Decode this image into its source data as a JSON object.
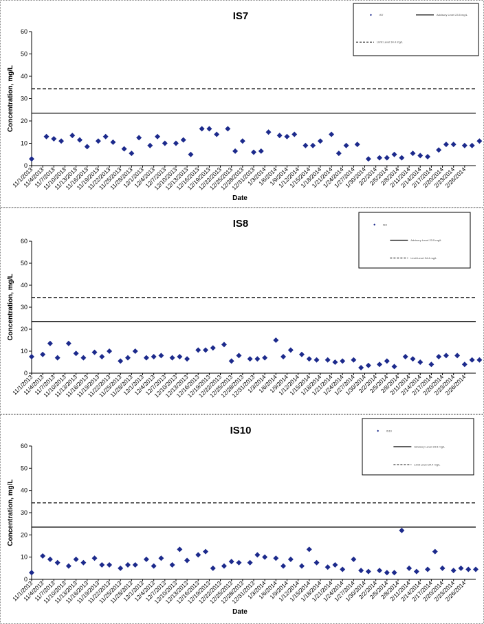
{
  "chart_data": [
    {
      "type": "scatter",
      "title": "IS7",
      "xlabel": "Date",
      "ylabel": "Concentration, mg/L",
      "ylim": [
        0,
        60
      ],
      "yticks": [
        0,
        10,
        20,
        30,
        40,
        50,
        60
      ],
      "xlim": [
        "11/1/2013",
        "3/1/2014"
      ],
      "xticks": [
        "11/1/2013",
        "11/4/2013",
        "11/7/2013",
        "11/10/2013",
        "11/13/2013",
        "11/16/2013",
        "11/19/2013",
        "11/22/2013",
        "11/25/2013",
        "11/28/2013",
        "12/1/2013",
        "12/4/2013",
        "12/7/2013",
        "12/10/2013",
        "12/13/2013",
        "12/16/2013",
        "12/19/2013",
        "12/22/2013",
        "12/25/2013",
        "12/28/2013",
        "12/31/2013",
        "1/3/2014",
        "1/6/2014",
        "1/9/2014",
        "1/12/2014",
        "1/15/2014",
        "1/18/2014",
        "1/21/2014",
        "1/24/2014",
        "1/27/2014",
        "1/30/2014",
        "2/2/2014",
        "2/5/2014",
        "2/8/2014",
        "2/11/2014",
        "2/14/2014",
        "2/17/2014",
        "2/20/2014",
        "2/23/2014",
        "2/26/2014"
      ],
      "legend_placement": "top-right",
      "legend_entries": [
        "IS7",
        "Advisory Level 23.5 mg/L",
        "Limit Level 34.4 mg/L"
      ],
      "reference_lines": [
        {
          "name": "Advisory Level 23.5 mg/L",
          "y": 23.5,
          "style": "solid",
          "color": "#000000"
        },
        {
          "name": "Limit Level 34.4 mg/L",
          "y": 34.4,
          "style": "dashed",
          "color": "#000000"
        }
      ],
      "series": [
        {
          "name": "IS7",
          "color": "#1c2a8c",
          "marker": "diamond",
          "x": [
            "11/1/2013",
            "11/5/2013",
            "11/7/2013",
            "11/9/2013",
            "11/12/2013",
            "11/14/2013",
            "11/16/2013",
            "11/19/2013",
            "11/21/2013",
            "11/23/2013",
            "11/26/2013",
            "11/28/2013",
            "11/30/2013",
            "12/3/2013",
            "12/5/2013",
            "12/7/2013",
            "12/10/2013",
            "12/12/2013",
            "12/14/2013",
            "12/17/2013",
            "12/19/2013",
            "12/21/2013",
            "12/24/2013",
            "12/26/2013",
            "12/28/2013",
            "12/31/2013",
            "1/2/2014",
            "1/4/2014",
            "1/7/2014",
            "1/9/2014",
            "1/11/2014",
            "1/14/2014",
            "1/16/2014",
            "1/18/2014",
            "1/21/2014",
            "1/23/2014",
            "1/25/2014",
            "1/28/2014",
            "1/31/2014",
            "2/3/2014",
            "2/5/2014",
            "2/7/2014",
            "2/9/2014",
            "2/12/2014",
            "2/14/2014",
            "2/16/2014",
            "2/19/2014",
            "2/21/2014",
            "2/23/2014",
            "2/26/2014",
            "2/28/2014",
            "3/2/2014"
          ],
          "values": [
            3,
            13,
            12,
            11,
            13.5,
            11.5,
            8.5,
            11,
            13,
            10.5,
            7.5,
            5.5,
            12.5,
            9,
            13,
            10,
            10,
            11.5,
            5,
            16.5,
            16.5,
            14,
            16.5,
            6.5,
            11,
            6,
            6.5,
            15,
            13.5,
            13,
            14,
            9,
            9,
            11,
            14,
            5.5,
            9,
            9.5,
            3,
            3.5,
            3.5,
            5,
            3.5,
            5.5,
            4.5,
            4,
            7,
            9.5,
            9.5,
            9,
            9,
            11
          ]
        }
      ]
    },
    {
      "type": "scatter",
      "title": "IS8",
      "xlabel": "",
      "ylabel": "Concentration, mg/L",
      "ylim": [
        0,
        60
      ],
      "yticks": [
        0,
        10,
        20,
        30,
        40,
        50,
        60
      ],
      "xlim": [
        "11/1/2013",
        "3/1/2014"
      ],
      "xticks": [
        "11/1/2013",
        "11/4/2013",
        "11/7/2013",
        "11/10/2013",
        "11/13/2013",
        "11/16/2013",
        "11/19/2013",
        "11/22/2013",
        "11/25/2013",
        "11/28/2013",
        "12/1/2013",
        "12/4/2013",
        "12/7/2013",
        "12/10/2013",
        "12/13/2013",
        "12/16/2013",
        "12/19/2013",
        "12/22/2013",
        "12/25/2013",
        "12/28/2013",
        "12/31/2013",
        "1/3/2014",
        "1/6/2014",
        "1/9/2014",
        "1/12/2014",
        "1/15/2014",
        "1/18/2014",
        "1/21/2014",
        "1/24/2014",
        "1/27/2014",
        "1/30/2014",
        "2/2/2014",
        "2/5/2014",
        "2/8/2014",
        "2/11/2014",
        "2/14/2014",
        "2/17/2014",
        "2/20/2014",
        "2/23/2014",
        "2/26/2014"
      ],
      "legend_placement": "top-right",
      "legend_entries": [
        "IS8",
        "Advisory Level 23.5 mg/L",
        "Limit Level 34.4 mg/L"
      ],
      "reference_lines": [
        {
          "name": "Advisory Level 23.5 mg/L",
          "y": 23.5,
          "style": "solid",
          "color": "#000000"
        },
        {
          "name": "Limit Level 34.4 mg/L",
          "y": 34.4,
          "style": "dashed",
          "color": "#000000"
        }
      ],
      "series": [
        {
          "name": "IS8",
          "color": "#1c2a8c",
          "marker": "diamond",
          "x": [
            "11/1/2013",
            "11/4/2013",
            "11/6/2013",
            "11/8/2013",
            "11/11/2013",
            "11/13/2013",
            "11/15/2013",
            "11/18/2013",
            "11/20/2013",
            "11/22/2013",
            "11/25/2013",
            "11/27/2013",
            "11/29/2013",
            "12/2/2013",
            "12/4/2013",
            "12/6/2013",
            "12/9/2013",
            "12/11/2013",
            "12/13/2013",
            "12/16/2013",
            "12/18/2013",
            "12/20/2013",
            "12/23/2013",
            "12/25/2013",
            "12/27/2013",
            "12/30/2013",
            "1/1/2014",
            "1/3/2014",
            "1/6/2014",
            "1/8/2014",
            "1/10/2014",
            "1/13/2014",
            "1/15/2014",
            "1/17/2014",
            "1/20/2014",
            "1/22/2014",
            "1/24/2014",
            "1/27/2014",
            "1/29/2014",
            "1/31/2014",
            "2/3/2014",
            "2/5/2014",
            "2/7/2014",
            "2/10/2014",
            "2/12/2014",
            "2/14/2014",
            "2/17/2014",
            "2/19/2014",
            "2/21/2014",
            "2/24/2014",
            "2/26/2014",
            "2/28/2014",
            "3/2/2014"
          ],
          "values": [
            7.5,
            8.5,
            13.5,
            7,
            13.5,
            9,
            7,
            9.5,
            7.5,
            10,
            5.5,
            7,
            10,
            7,
            7.5,
            8,
            7,
            7.5,
            6.5,
            10.5,
            10.5,
            11.5,
            13,
            5.5,
            8,
            6.5,
            6.5,
            7,
            15,
            7.5,
            10.5,
            8.5,
            6.5,
            6,
            6,
            5,
            5.5,
            6,
            2.5,
            3.5,
            4,
            5.5,
            3,
            7.5,
            6.5,
            5,
            4,
            7.5,
            8,
            8,
            4,
            6,
            6
          ]
        }
      ]
    },
    {
      "type": "scatter",
      "title": "IS10",
      "xlabel": "Date",
      "ylabel": "Concentration, mg/L",
      "ylim": [
        0,
        60
      ],
      "yticks": [
        0,
        10,
        20,
        30,
        40,
        50,
        60
      ],
      "xlim": [
        "11/1/2013",
        "3/1/2014"
      ],
      "xticks": [
        "11/1/2013",
        "11/4/2013",
        "11/7/2013",
        "11/10/2013",
        "11/13/2013",
        "11/16/2013",
        "11/19/2013",
        "11/22/2013",
        "11/25/2013",
        "11/28/2013",
        "12/1/2013",
        "12/4/2013",
        "12/7/2013",
        "12/10/2013",
        "12/13/2013",
        "12/16/2013",
        "12/19/2013",
        "12/22/2013",
        "12/25/2013",
        "12/28/2013",
        "12/31/2013",
        "1/3/2014",
        "1/6/2014",
        "1/9/2014",
        "1/12/2014",
        "1/15/2014",
        "1/18/2014",
        "1/21/2014",
        "1/24/2014",
        "1/27/2014",
        "1/30/2014",
        "2/2/2014",
        "2/5/2014",
        "2/8/2014",
        "2/11/2014",
        "2/14/2014",
        "2/17/2014",
        "2/20/2014",
        "2/23/2014",
        "2/26/2014"
      ],
      "legend_placement": "top-right",
      "legend_entries": [
        "IS10",
        "Advisory Level 23.5 mg/L",
        "Limit Level 34.4 mg/L"
      ],
      "reference_lines": [
        {
          "name": "Advisory Level 23.5 mg/L",
          "y": 23.5,
          "style": "solid",
          "color": "#000000"
        },
        {
          "name": "Limit Level 34.4 mg/L",
          "y": 34.4,
          "style": "dashed",
          "color": "#000000"
        }
      ],
      "series": [
        {
          "name": "IS10",
          "color": "#1c2a8c",
          "marker": "diamond",
          "x": [
            "11/1/2013",
            "11/4/2013",
            "11/6/2013",
            "11/8/2013",
            "11/11/2013",
            "11/13/2013",
            "11/15/2013",
            "11/18/2013",
            "11/20/2013",
            "11/22/2013",
            "11/25/2013",
            "11/27/2013",
            "11/29/2013",
            "12/2/2013",
            "12/4/2013",
            "12/6/2013",
            "12/9/2013",
            "12/11/2013",
            "12/13/2013",
            "12/16/2013",
            "12/18/2013",
            "12/20/2013",
            "12/23/2013",
            "12/25/2013",
            "12/27/2013",
            "12/30/2013",
            "1/1/2014",
            "1/3/2014",
            "1/6/2014",
            "1/8/2014",
            "1/10/2014",
            "1/13/2014",
            "1/15/2014",
            "1/17/2014",
            "1/20/2014",
            "1/22/2014",
            "1/24/2014",
            "1/27/2014",
            "1/29/2014",
            "1/31/2014",
            "2/3/2014",
            "2/5/2014",
            "2/7/2014",
            "2/9/2014",
            "2/11/2014",
            "2/13/2014",
            "2/16/2014",
            "2/18/2014",
            "2/20/2014",
            "2/23/2014",
            "2/25/2014",
            "2/27/2014",
            "3/1/2014"
          ],
          "values": [
            3,
            10.5,
            9,
            7.5,
            6,
            9,
            7.5,
            9.5,
            6.5,
            6.5,
            5,
            6.5,
            6.5,
            9,
            6,
            9.5,
            6.5,
            13.5,
            8.5,
            11,
            12.5,
            5,
            6,
            8,
            7.5,
            7.5,
            11,
            10,
            9.5,
            6,
            9,
            6,
            13.5,
            7.5,
            5.5,
            6.5,
            4.5,
            9,
            4,
            3.5,
            4,
            3,
            3,
            22,
            5,
            3.5,
            4.5,
            12.5,
            5,
            4,
            5,
            4.5,
            4.5
          ]
        }
      ]
    }
  ]
}
